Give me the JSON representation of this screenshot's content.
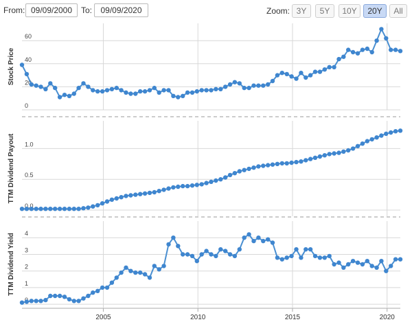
{
  "toolbar": {
    "from_label": "From:",
    "from_value": "09/09/2000",
    "to_label": "To:",
    "to_value": "09/09/2020",
    "zoom_label": "Zoom:",
    "zoom_options": [
      "3Y",
      "5Y",
      "10Y",
      "20Y",
      "All"
    ],
    "zoom_selected": "20Y"
  },
  "colors": {
    "series": "#4a8fd1",
    "marker": "#3f86cf",
    "grid": "#d8d8d8"
  },
  "chart_data": [
    {
      "type": "line",
      "ylabel": "Stock Price",
      "xlim": [
        2000.7,
        2020.7
      ],
      "ylim": [
        0,
        75
      ],
      "yticks": [
        0,
        20,
        40,
        60
      ],
      "xticks": [
        2005,
        2010,
        2015,
        2020
      ],
      "grid": true,
      "x": [
        2000.7,
        2000.95,
        2001.2,
        2001.45,
        2001.7,
        2001.95,
        2002.2,
        2002.45,
        2002.7,
        2002.95,
        2003.2,
        2003.45,
        2003.7,
        2003.95,
        2004.2,
        2004.45,
        2004.7,
        2004.95,
        2005.2,
        2005.45,
        2005.7,
        2005.95,
        2006.2,
        2006.45,
        2006.7,
        2006.95,
        2007.2,
        2007.45,
        2007.7,
        2007.95,
        2008.2,
        2008.45,
        2008.7,
        2008.95,
        2009.2,
        2009.45,
        2009.7,
        2009.95,
        2010.2,
        2010.45,
        2010.7,
        2010.95,
        2011.2,
        2011.45,
        2011.7,
        2011.95,
        2012.2,
        2012.45,
        2012.7,
        2012.95,
        2013.2,
        2013.45,
        2013.7,
        2013.95,
        2014.2,
        2014.45,
        2014.7,
        2014.95,
        2015.2,
        2015.45,
        2015.7,
        2015.95,
        2016.2,
        2016.45,
        2016.7,
        2016.95,
        2017.2,
        2017.45,
        2017.7,
        2017.95,
        2018.2,
        2018.45,
        2018.7,
        2018.95,
        2019.2,
        2019.45,
        2019.7,
        2019.95,
        2020.2,
        2020.45,
        2020.7
      ],
      "values": [
        39,
        31,
        22,
        21,
        20,
        18,
        23,
        19,
        11,
        13,
        12,
        14,
        19,
        23,
        20,
        17,
        16,
        16,
        17,
        18,
        19,
        17,
        15,
        14,
        14,
        16,
        16,
        17,
        19,
        15,
        17,
        17,
        12,
        11,
        12,
        15,
        15,
        16,
        17,
        17,
        17,
        18,
        18,
        20,
        22,
        24,
        23,
        19,
        19,
        21,
        21,
        21,
        22,
        25,
        30,
        32,
        31,
        29,
        27,
        32,
        28,
        30,
        33,
        33,
        35,
        37,
        37,
        44,
        46,
        52,
        50,
        49,
        52,
        53,
        50,
        60,
        70,
        62,
        52,
        52,
        51
      ]
    },
    {
      "type": "line",
      "ylabel": "TTM Dividend Payout",
      "xlim": [
        2000.7,
        2020.7
      ],
      "ylim": [
        -0.1,
        1.45
      ],
      "yticks": [
        0.0,
        0.5,
        1.0
      ],
      "ytick_labels": [
        "0.0",
        "0.5",
        "1.0"
      ],
      "xticks": [
        2005,
        2010,
        2015,
        2020
      ],
      "grid": true,
      "x": [
        2000.7,
        2000.95,
        2001.2,
        2001.45,
        2001.7,
        2001.95,
        2002.2,
        2002.45,
        2002.7,
        2002.95,
        2003.2,
        2003.45,
        2003.7,
        2003.95,
        2004.2,
        2004.45,
        2004.7,
        2004.95,
        2005.2,
        2005.45,
        2005.7,
        2005.95,
        2006.2,
        2006.45,
        2006.7,
        2006.95,
        2007.2,
        2007.45,
        2007.7,
        2007.95,
        2008.2,
        2008.45,
        2008.7,
        2008.95,
        2009.2,
        2009.45,
        2009.7,
        2009.95,
        2010.2,
        2010.45,
        2010.7,
        2010.95,
        2011.2,
        2011.45,
        2011.7,
        2011.95,
        2012.2,
        2012.45,
        2012.7,
        2012.95,
        2013.2,
        2013.45,
        2013.7,
        2013.95,
        2014.2,
        2014.45,
        2014.7,
        2014.95,
        2015.2,
        2015.45,
        2015.7,
        2015.95,
        2016.2,
        2016.45,
        2016.7,
        2016.95,
        2017.2,
        2017.45,
        2017.7,
        2017.95,
        2018.2,
        2018.45,
        2018.7,
        2018.95,
        2019.2,
        2019.45,
        2019.7,
        2019.95,
        2020.2,
        2020.45,
        2020.7
      ],
      "values": [
        0.02,
        0.02,
        0.02,
        0.02,
        0.02,
        0.02,
        0.02,
        0.02,
        0.02,
        0.02,
        0.02,
        0.02,
        0.02,
        0.03,
        0.04,
        0.06,
        0.08,
        0.11,
        0.14,
        0.17,
        0.19,
        0.21,
        0.23,
        0.24,
        0.25,
        0.26,
        0.27,
        0.28,
        0.29,
        0.31,
        0.33,
        0.35,
        0.37,
        0.38,
        0.39,
        0.39,
        0.4,
        0.41,
        0.42,
        0.44,
        0.46,
        0.48,
        0.5,
        0.53,
        0.57,
        0.6,
        0.63,
        0.65,
        0.67,
        0.69,
        0.71,
        0.72,
        0.73,
        0.74,
        0.75,
        0.76,
        0.76,
        0.77,
        0.78,
        0.79,
        0.81,
        0.83,
        0.85,
        0.87,
        0.89,
        0.91,
        0.92,
        0.93,
        0.95,
        0.97,
        1.0,
        1.04,
        1.08,
        1.12,
        1.15,
        1.18,
        1.21,
        1.24,
        1.26,
        1.28,
        1.29
      ]
    },
    {
      "type": "line",
      "ylabel": "TTM Dividend Yield",
      "xlim": [
        2000.7,
        2020.7
      ],
      "ylim": [
        -0.2,
        5.0
      ],
      "yticks": [
        0,
        1,
        2,
        3,
        4
      ],
      "xticks": [
        2005,
        2010,
        2015,
        2020
      ],
      "xtick_labels": [
        "2005",
        "2010",
        "2015",
        "2020"
      ],
      "grid": true,
      "x": [
        2000.7,
        2000.95,
        2001.2,
        2001.45,
        2001.7,
        2001.95,
        2002.2,
        2002.45,
        2002.7,
        2002.95,
        2003.2,
        2003.45,
        2003.7,
        2003.95,
        2004.2,
        2004.45,
        2004.7,
        2004.95,
        2005.2,
        2005.45,
        2005.7,
        2005.95,
        2006.2,
        2006.45,
        2006.7,
        2006.95,
        2007.2,
        2007.45,
        2007.7,
        2007.95,
        2008.2,
        2008.45,
        2008.7,
        2008.95,
        2009.2,
        2009.45,
        2009.7,
        2009.95,
        2010.2,
        2010.45,
        2010.7,
        2010.95,
        2011.2,
        2011.45,
        2011.7,
        2011.95,
        2012.2,
        2012.45,
        2012.7,
        2012.95,
        2013.2,
        2013.45,
        2013.7,
        2013.95,
        2014.2,
        2014.45,
        2014.7,
        2014.95,
        2015.2,
        2015.45,
        2015.7,
        2015.95,
        2016.2,
        2016.45,
        2016.7,
        2016.95,
        2017.2,
        2017.45,
        2017.7,
        2017.95,
        2018.2,
        2018.45,
        2018.7,
        2018.95,
        2019.2,
        2019.45,
        2019.7,
        2019.95,
        2020.2,
        2020.45,
        2020.7
      ],
      "values": [
        0.1,
        0.15,
        0.2,
        0.2,
        0.2,
        0.25,
        0.5,
        0.5,
        0.5,
        0.45,
        0.3,
        0.2,
        0.2,
        0.35,
        0.5,
        0.7,
        0.8,
        1.0,
        1.0,
        1.3,
        1.6,
        1.9,
        2.2,
        2.0,
        1.9,
        1.9,
        1.8,
        1.6,
        2.3,
        2.1,
        2.3,
        3.6,
        4.0,
        3.5,
        3.0,
        3.0,
        2.9,
        2.6,
        3.0,
        3.2,
        3.0,
        2.9,
        3.3,
        3.2,
        3.0,
        2.9,
        3.3,
        4.0,
        4.2,
        3.8,
        4.0,
        3.8,
        3.9,
        3.7,
        2.8,
        2.7,
        2.8,
        2.9,
        3.3,
        2.8,
        3.3,
        3.3,
        2.9,
        2.8,
        2.8,
        2.9,
        2.4,
        2.5,
        2.2,
        2.4,
        2.6,
        2.5,
        2.4,
        2.6,
        2.3,
        2.2,
        2.6,
        2.0,
        2.3,
        2.7,
        2.7
      ]
    }
  ]
}
